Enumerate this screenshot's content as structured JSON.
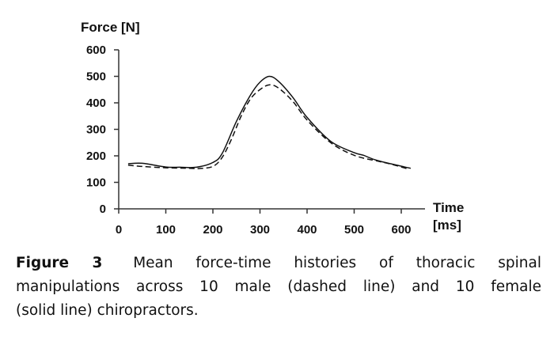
{
  "chart_data": {
    "type": "line",
    "title": "",
    "xlabel": [
      "Time",
      "[ms]"
    ],
    "ylabel": "Force [N]",
    "xlim": [
      0,
      600
    ],
    "ylim": [
      0,
      600
    ],
    "x_ticks": [
      "0",
      "100",
      "200",
      "300",
      "400",
      "500",
      "600"
    ],
    "y_ticks": [
      "0",
      "100",
      "200",
      "300",
      "400",
      "500",
      "600"
    ],
    "grid": false,
    "series": [
      {
        "name": "female (solid line)",
        "style": "solid",
        "x": [
          20,
          50,
          100,
          130,
          165,
          200,
          220,
          250,
          280,
          300,
          320,
          340,
          370,
          400,
          450,
          500,
          520,
          550,
          620
        ],
        "y": [
          170,
          172,
          158,
          157,
          157,
          175,
          210,
          330,
          430,
          478,
          500,
          480,
          420,
          345,
          255,
          212,
          202,
          182,
          153
        ]
      },
      {
        "name": "male (dashed line)",
        "style": "dashed",
        "x": [
          20,
          50,
          100,
          150,
          170,
          200,
          220,
          240,
          260,
          280,
          300,
          320,
          340,
          370,
          400,
          450,
          500,
          550,
          580,
          615
        ],
        "y": [
          165,
          160,
          155,
          153,
          152,
          160,
          195,
          265,
          350,
          415,
          450,
          468,
          455,
          405,
          335,
          250,
          202,
          180,
          168,
          150
        ]
      }
    ]
  },
  "caption": {
    "label": "Figure 3",
    "lines": [
      "Mean force-time histories of thoracic spinal",
      "manipulations across 10 male (dashed line) and 10 female",
      "(solid line) chiropractors."
    ]
  }
}
